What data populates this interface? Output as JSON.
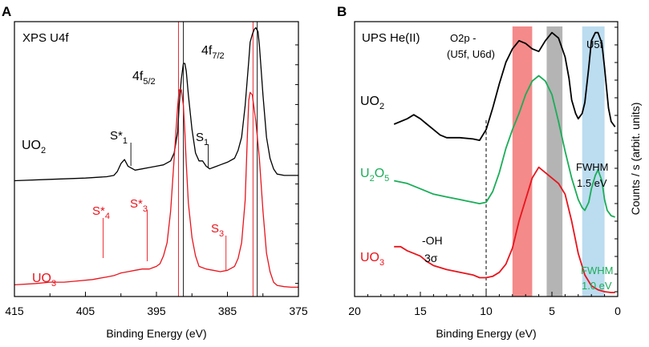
{
  "chart_data": [
    {
      "type": "line",
      "panel_letter": "A",
      "title": "XPS U4f",
      "xlabel": "Binding Energy (eV)",
      "ylabel": "",
      "xlim": [
        415,
        375
      ],
      "ylim": [
        0,
        100
      ],
      "x_ticks": [
        415,
        405,
        395,
        385,
        375
      ],
      "peak_labels": [
        {
          "main": "4f",
          "sub": "5/2"
        },
        {
          "main": "4f",
          "sub": "7/2"
        }
      ],
      "series": [
        {
          "name": "UO",
          "sub": "2",
          "color": "#000000",
          "x": [
            415,
            410,
            405,
            402,
            401,
            400.5,
            400,
            399.5,
            399,
            398,
            397,
            396,
            395,
            394,
            393,
            392.5,
            392,
            391.8,
            391.5,
            391.2,
            391,
            390.8,
            390.5,
            390,
            389.5,
            389,
            388.5,
            388,
            387.5,
            387,
            386.5,
            386,
            385,
            384,
            383.5,
            383,
            382.5,
            382,
            381.8,
            381.5,
            381.2,
            381,
            380.7,
            380.5,
            380,
            379.5,
            379,
            378.5,
            378,
            377,
            376,
            375
          ],
          "y": [
            41.5,
            42,
            42.5,
            43,
            43.5,
            45,
            48,
            49.5,
            47,
            45.5,
            46,
            46.5,
            47,
            47.5,
            49,
            52,
            60,
            70,
            80,
            86,
            86,
            83,
            74,
            61,
            52,
            49,
            49,
            47,
            46,
            46.5,
            47,
            47.5,
            48.5,
            50,
            53,
            58,
            70,
            87,
            94,
            97,
            99,
            99.5,
            98,
            93,
            74,
            58,
            50,
            46,
            44,
            43.5,
            43.5,
            43.5
          ]
        },
        {
          "name": "UO",
          "sub": "3",
          "color": "#e8141c",
          "x": [
            415,
            412,
            410,
            408,
            406,
            404,
            403,
            402,
            401,
            400.5,
            400,
            399,
            398,
            397,
            396,
            395.5,
            395,
            394.5,
            394,
            393.5,
            393,
            392.5,
            392,
            391.8,
            391.5,
            391.2,
            391,
            390.8,
            390.5,
            390,
            389.5,
            389,
            388,
            387,
            386,
            385,
            384,
            383.5,
            383,
            382.5,
            382.2,
            382,
            381.8,
            381.5,
            381,
            380.5,
            380,
            379.5,
            379,
            378.5,
            378,
            377,
            376,
            375
          ],
          "y": [
            2,
            2.5,
            3,
            3,
            3.5,
            4,
            4.5,
            5,
            5.5,
            6,
            6.5,
            7,
            7.5,
            8,
            8,
            8.5,
            9,
            10,
            13,
            18,
            30,
            50,
            70,
            76,
            76,
            70,
            60,
            48,
            33,
            20,
            13,
            9,
            8,
            7.5,
            7,
            7.5,
            9,
            12,
            18,
            34,
            58,
            72,
            75,
            74,
            64,
            50,
            30,
            14,
            7,
            3,
            1.8,
            1.3,
            1.1,
            1.1
          ]
        }
      ],
      "annotations": [
        {
          "label": "S*",
          "sub": "1",
          "x": 398.6,
          "color": "#000000"
        },
        {
          "label": "S",
          "sub": "1",
          "x": 387.7,
          "color": "#000000"
        },
        {
          "label": "S*",
          "sub": "4",
          "x": 402.5,
          "color": "#e8141c"
        },
        {
          "label": "S*",
          "sub": "3",
          "x": 396.3,
          "color": "#e8141c"
        },
        {
          "label": "S",
          "sub": "3",
          "x": 385.2,
          "color": "#e8141c"
        }
      ],
      "reference_lines": [
        {
          "x": 391.9,
          "color": "#e8141c"
        },
        {
          "x": 391.2,
          "color": "#000000"
        },
        {
          "x": 381.4,
          "color": "#e8141c"
        },
        {
          "x": 380.8,
          "color": "#000000"
        }
      ]
    },
    {
      "type": "line",
      "panel_letter": "B",
      "title": "UPS He(II)",
      "xlabel": "Binding Energy (eV)",
      "ylabel": "Counts / s (arbit. units)",
      "xlim": [
        20,
        0
      ],
      "ylim": [
        0,
        100
      ],
      "x_ticks": [
        20,
        15,
        10,
        5,
        0
      ],
      "band_labels": {
        "o2p_line1": "O2p -",
        "o2p_line2": "(U5f, U6d)",
        "u5f": "U5f"
      },
      "series": [
        {
          "name": "UO",
          "sub": "2",
          "color": "#000000",
          "x": [
            17,
            16,
            15.5,
            15,
            14.5,
            14,
            13.5,
            13,
            12,
            11,
            10.5,
            10,
            9.5,
            9,
            8.5,
            8,
            7.5,
            7,
            6.5,
            6,
            5.5,
            5,
            4.5,
            4,
            3.7,
            3.5,
            3.2,
            3,
            2.7,
            2.5,
            2.2,
            2,
            1.7,
            1.5,
            1.2,
            1,
            0.7,
            0.5,
            0.2
          ],
          "y": [
            64,
            66,
            67.5,
            66,
            64,
            62,
            60,
            59,
            59,
            58.5,
            58,
            62,
            70,
            79,
            87,
            92,
            95,
            94,
            92,
            91,
            95,
            98,
            96,
            89,
            81,
            73,
            68,
            66,
            68,
            72,
            85,
            95,
            98,
            98,
            94,
            85,
            70,
            65,
            63
          ]
        },
        {
          "name": "U",
          "sub": "2",
          "name2": "O",
          "sub2": "5",
          "color": "#1aad58",
          "x": [
            17,
            16,
            15,
            14,
            13,
            12,
            11.5,
            11,
            10.5,
            10,
            9.5,
            9,
            8.5,
            8,
            7.5,
            7,
            6.5,
            6,
            5.5,
            5,
            4.5,
            4,
            3.5,
            3,
            2.7,
            2.5,
            2.2,
            2,
            1.7,
            1.5,
            1.2,
            1,
            0.8,
            0.5,
            0.2
          ],
          "y": [
            43,
            42,
            40,
            38,
            37,
            36,
            35.5,
            35,
            34.5,
            35,
            39,
            46,
            55,
            62,
            68,
            75,
            80,
            82,
            80,
            75,
            65,
            54,
            44,
            36,
            33,
            32,
            35,
            40,
            45,
            47,
            43,
            36,
            32,
            30,
            29.5
          ]
        },
        {
          "name": "UO",
          "sub": "3",
          "color": "#e8141c",
          "x": [
            17,
            16.5,
            16,
            15.5,
            15,
            14.5,
            14,
            13,
            12,
            11,
            10.5,
            10,
            9.5,
            9,
            8.5,
            8,
            7.5,
            7,
            6.5,
            6,
            5.5,
            5,
            4.5,
            4,
            3.5,
            3,
            2.5,
            2,
            1.5,
            1,
            0.5,
            0.2
          ],
          "y": [
            18.5,
            18.5,
            17,
            16,
            15,
            13,
            11.5,
            10,
            9,
            8,
            7,
            7,
            7.5,
            9,
            12,
            18,
            28,
            36,
            44,
            48,
            46,
            44,
            42,
            38,
            28,
            16,
            8,
            4,
            2.5,
            1.8,
            1.5,
            1.5
          ]
        }
      ],
      "bands": [
        {
          "x0": 8,
          "x1": 6.5,
          "color": "#f48a8a"
        },
        {
          "x0": 5.4,
          "x1": 4.2,
          "color": "#b4b4b4"
        },
        {
          "x0": 2.7,
          "x1": 1.0,
          "color": "#bcdcef"
        }
      ],
      "dashed_line_x": 10,
      "annotations": {
        "oh_line1": "-OH",
        "oh_line2": "3σ",
        "fwhm_label": "FWHM",
        "fwhm_black_value": "1.5 eV",
        "fwhm_green_value": "1.0 eV"
      }
    }
  ]
}
